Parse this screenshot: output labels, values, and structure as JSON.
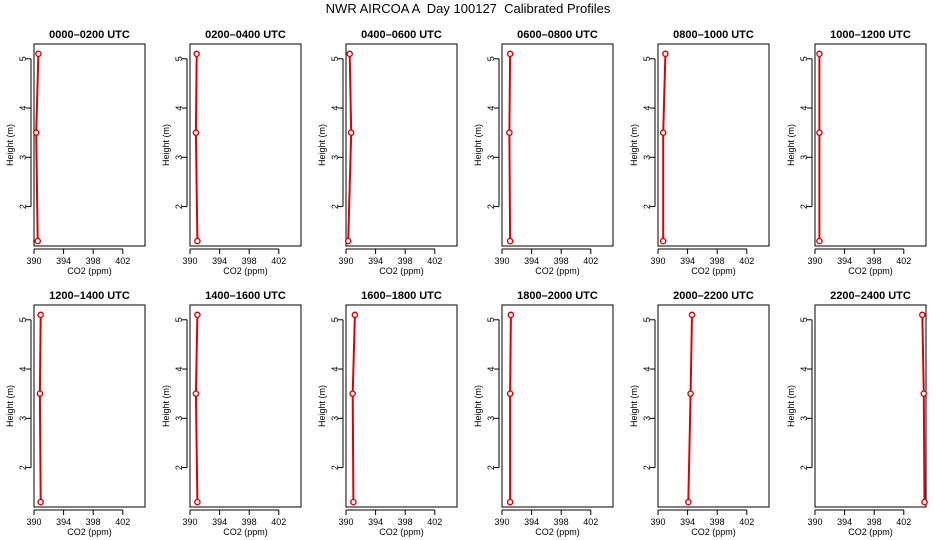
{
  "title": "NWR AIRCOA A  Day 100127  Calibrated Profiles",
  "colors": {
    "profile_line": "#e00000",
    "marker": "#e00000",
    "axis": "#000000"
  },
  "chart_data": [
    {
      "type": "line",
      "title": "0000–0200 UTC",
      "xlabel": "CO2 (ppm)",
      "ylabel": "Height (m)",
      "xlim": [
        390,
        405
      ],
      "ylim": [
        1.2,
        5.3
      ],
      "x_ticks": [
        "390",
        "394",
        "398",
        "402"
      ],
      "y_ticks": [
        "2",
        "3",
        "4",
        "5"
      ],
      "series": [
        {
          "x": [
            390.5,
            390.3,
            390.6
          ],
          "y": [
            1.3,
            3.5,
            5.1
          ]
        }
      ]
    },
    {
      "type": "line",
      "title": "0200–0400 UTC",
      "xlabel": "CO2 (ppm)",
      "ylabel": "Height (m)",
      "xlim": [
        390,
        405
      ],
      "ylim": [
        1.2,
        5.3
      ],
      "x_ticks": [
        "390",
        "394",
        "398",
        "402"
      ],
      "y_ticks": [
        "2",
        "3",
        "4",
        "5"
      ],
      "series": [
        {
          "x": [
            391.0,
            390.8,
            390.9
          ],
          "y": [
            1.3,
            3.5,
            5.1
          ]
        }
      ]
    },
    {
      "type": "line",
      "title": "0400–0600 UTC",
      "xlabel": "CO2 (ppm)",
      "ylabel": "Height (m)",
      "xlim": [
        390,
        405
      ],
      "ylim": [
        1.2,
        5.3
      ],
      "x_ticks": [
        "390",
        "394",
        "398",
        "402"
      ],
      "y_ticks": [
        "2",
        "3",
        "4",
        "5"
      ],
      "series": [
        {
          "x": [
            390.3,
            390.7,
            390.5
          ],
          "y": [
            1.3,
            3.5,
            5.1
          ]
        }
      ]
    },
    {
      "type": "line",
      "title": "0600–0800 UTC",
      "xlabel": "CO2 (ppm)",
      "ylabel": "Height (m)",
      "xlim": [
        390,
        405
      ],
      "ylim": [
        1.2,
        5.3
      ],
      "x_ticks": [
        "390",
        "394",
        "398",
        "402"
      ],
      "y_ticks": [
        "2",
        "3",
        "4",
        "5"
      ],
      "series": [
        {
          "x": [
            391.1,
            391.0,
            391.1
          ],
          "y": [
            1.3,
            3.5,
            5.1
          ]
        }
      ]
    },
    {
      "type": "line",
      "title": "0800–1000 UTC",
      "xlabel": "CO2 (ppm)",
      "ylabel": "Height (m)",
      "xlim": [
        390,
        405
      ],
      "ylim": [
        1.2,
        5.3
      ],
      "x_ticks": [
        "390",
        "394",
        "398",
        "402"
      ],
      "y_ticks": [
        "2",
        "3",
        "4",
        "5"
      ],
      "series": [
        {
          "x": [
            390.7,
            390.7,
            391.0
          ],
          "y": [
            1.3,
            3.5,
            5.1
          ]
        }
      ]
    },
    {
      "type": "line",
      "title": "1000–1200 UTC",
      "xlabel": "CO2 (ppm)",
      "ylabel": "Height (m)",
      "xlim": [
        390,
        405
      ],
      "ylim": [
        1.2,
        5.3
      ],
      "x_ticks": [
        "390",
        "394",
        "398",
        "402"
      ],
      "y_ticks": [
        "2",
        "3",
        "4",
        "5"
      ],
      "series": [
        {
          "x": [
            390.6,
            390.6,
            390.6
          ],
          "y": [
            1.3,
            3.5,
            5.1
          ]
        }
      ]
    },
    {
      "type": "line",
      "title": "1200–1400 UTC",
      "xlabel": "CO2 (ppm)",
      "ylabel": "Height (m)",
      "xlim": [
        390,
        405
      ],
      "ylim": [
        1.2,
        5.3
      ],
      "x_ticks": [
        "390",
        "394",
        "398",
        "402"
      ],
      "y_ticks": [
        "2",
        "3",
        "4",
        "5"
      ],
      "series": [
        {
          "x": [
            390.9,
            390.8,
            390.9
          ],
          "y": [
            1.3,
            3.5,
            5.1
          ]
        }
      ]
    },
    {
      "type": "line",
      "title": "1400–1600 UTC",
      "xlabel": "CO2 (ppm)",
      "ylabel": "Height (m)",
      "xlim": [
        390,
        405
      ],
      "ylim": [
        1.2,
        5.3
      ],
      "x_ticks": [
        "390",
        "394",
        "398",
        "402"
      ],
      "y_ticks": [
        "2",
        "3",
        "4",
        "5"
      ],
      "series": [
        {
          "x": [
            391.0,
            390.8,
            391.0
          ],
          "y": [
            1.3,
            3.5,
            5.1
          ]
        }
      ]
    },
    {
      "type": "line",
      "title": "1600–1800 UTC",
      "xlabel": "CO2 (ppm)",
      "ylabel": "Height (m)",
      "xlim": [
        390,
        405
      ],
      "ylim": [
        1.2,
        5.3
      ],
      "x_ticks": [
        "390",
        "394",
        "398",
        "402"
      ],
      "y_ticks": [
        "2",
        "3",
        "4",
        "5"
      ],
      "series": [
        {
          "x": [
            391.0,
            390.9,
            391.2
          ],
          "y": [
            1.3,
            3.5,
            5.1
          ]
        }
      ]
    },
    {
      "type": "line",
      "title": "1800–2000 UTC",
      "xlabel": "CO2 (ppm)",
      "ylabel": "Height (m)",
      "xlim": [
        390,
        405
      ],
      "ylim": [
        1.2,
        5.3
      ],
      "x_ticks": [
        "390",
        "394",
        "398",
        "402"
      ],
      "y_ticks": [
        "2",
        "3",
        "4",
        "5"
      ],
      "series": [
        {
          "x": [
            391.1,
            391.1,
            391.2
          ],
          "y": [
            1.3,
            3.5,
            5.1
          ]
        }
      ]
    },
    {
      "type": "line",
      "title": "2000–2200 UTC",
      "xlabel": "CO2 (ppm)",
      "ylabel": "Height (m)",
      "xlim": [
        390,
        405
      ],
      "ylim": [
        1.2,
        5.3
      ],
      "x_ticks": [
        "390",
        "394",
        "398",
        "402"
      ],
      "y_ticks": [
        "2",
        "3",
        "4",
        "5"
      ],
      "series": [
        {
          "x": [
            394.1,
            394.4,
            394.6
          ],
          "y": [
            1.3,
            3.5,
            5.1
          ]
        }
      ]
    },
    {
      "type": "line",
      "title": "2200–2400 UTC",
      "xlabel": "CO2 (ppm)",
      "ylabel": "Height (m)",
      "xlim": [
        390,
        405
      ],
      "ylim": [
        1.2,
        5.3
      ],
      "x_ticks": [
        "390",
        "394",
        "398",
        "402"
      ],
      "y_ticks": [
        "2",
        "3",
        "4",
        "5"
      ],
      "series": [
        {
          "x": [
            404.8,
            404.7,
            404.5
          ],
          "y": [
            1.3,
            3.5,
            5.1
          ]
        }
      ]
    }
  ]
}
